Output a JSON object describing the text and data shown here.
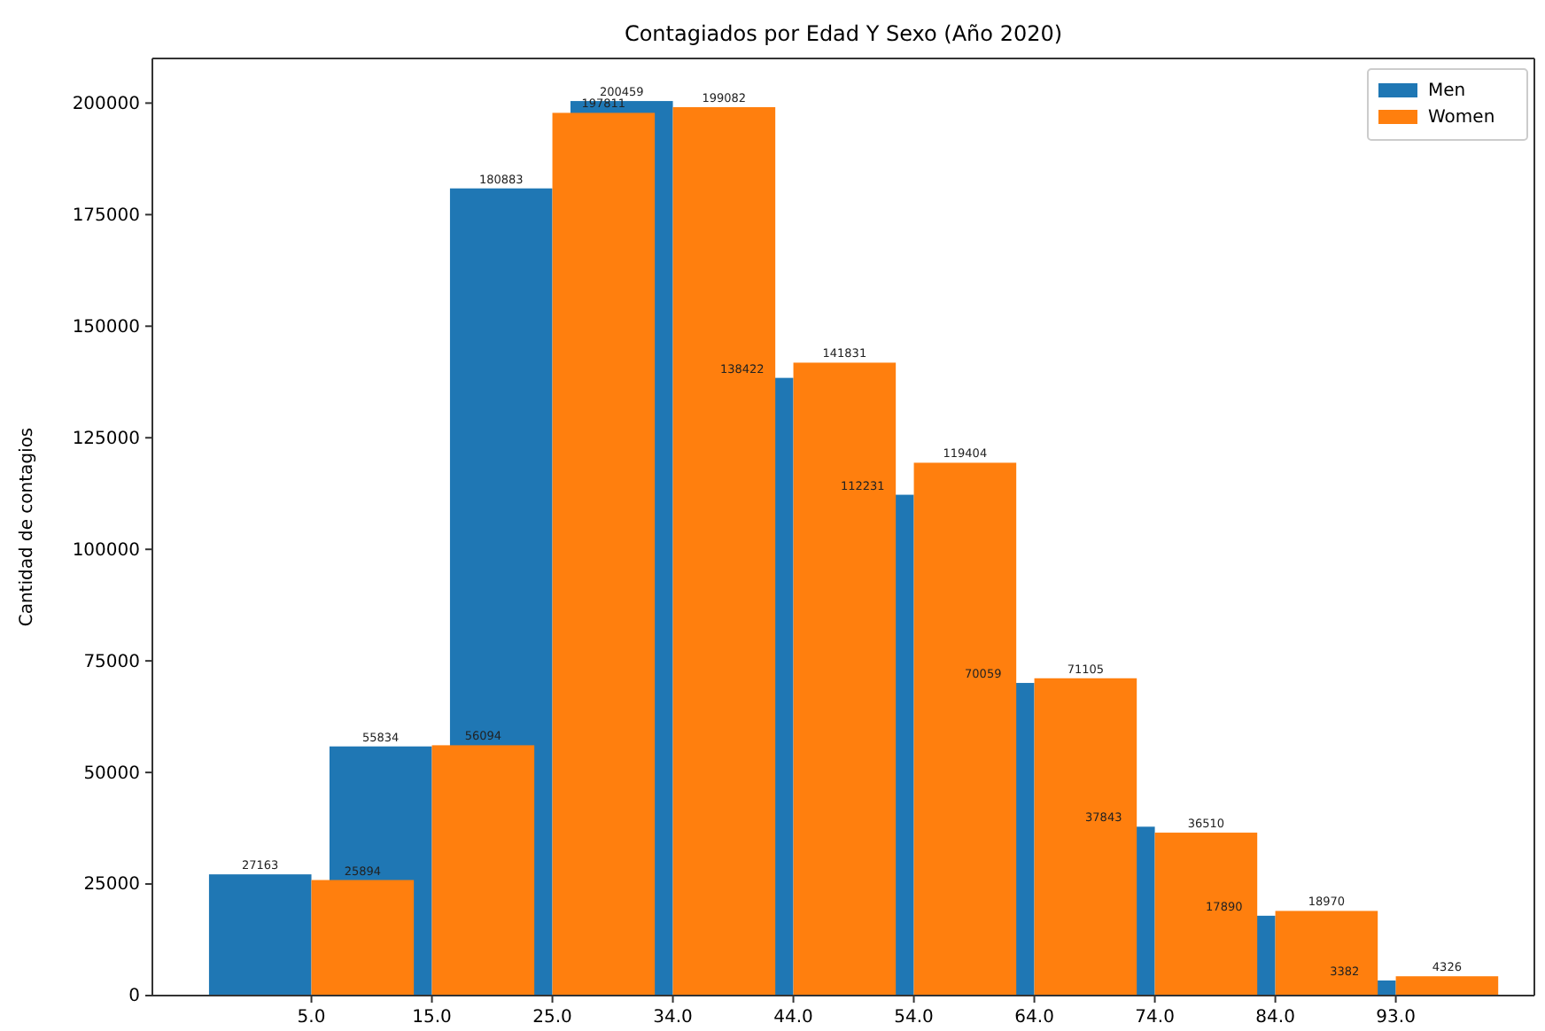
{
  "chart_data": {
    "type": "bar",
    "title": "Contagiados por Edad Y Sexo (Año 2020)",
    "ylabel": "Cantidad de contagios",
    "categories": [
      "5.0",
      "15.0",
      "25.0",
      "34.0",
      "44.0",
      "54.0",
      "64.0",
      "74.0",
      "84.0",
      "93.0"
    ],
    "series": [
      {
        "name": "Men",
        "color": "#1f77b4",
        "values": [
          27163,
          55834,
          180883,
          200459,
          138422,
          112231,
          70059,
          37843,
          17890,
          3382
        ]
      },
      {
        "name": "Women",
        "color": "#ff7f0e",
        "values": [
          25894,
          56094,
          197811,
          199082,
          141831,
          119404,
          71105,
          36510,
          18970,
          4326
        ]
      }
    ],
    "ylim": [
      0,
      210000
    ],
    "yticks": [
      0,
      25000,
      50000,
      75000,
      100000,
      125000,
      150000,
      175000,
      200000
    ],
    "data_labels": true,
    "legend": "top right",
    "grid": false
  }
}
